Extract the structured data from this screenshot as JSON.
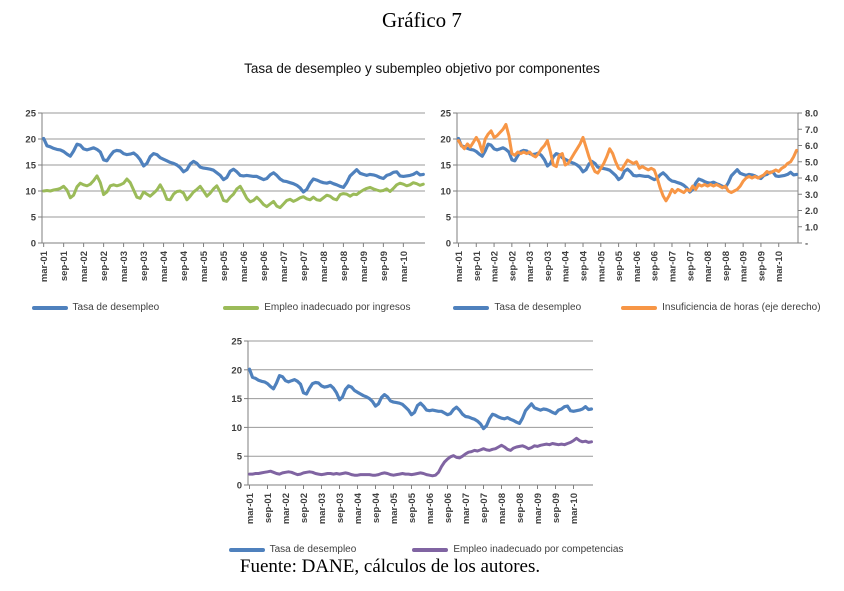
{
  "page": {
    "title": "Gráfico 7",
    "subtitle": "Tasa de desempleo y subempleo objetivo por componentes",
    "source": "Fuente: DANE, cálculos de los autores."
  },
  "colors": {
    "unemployment_blue": "#4F81BD",
    "income_green": "#9BBB59",
    "hours_orange": "#F79646",
    "competencies_purple": "#8064A2",
    "grid_gray": "#9a9a9a",
    "axis_gray": "#7f7f7f",
    "tick_text": "#3f3f3f"
  },
  "chart_data": [
    {
      "type": "line",
      "position": "top-left",
      "x_tick_labels": [
        "mar-01",
        "sep-01",
        "mar-02",
        "sep-02",
        "mar-03",
        "sep-03",
        "mar-04",
        "sep-04",
        "mar-05",
        "sep-05",
        "mar-06",
        "sep-06",
        "mar-07",
        "sep-07",
        "mar-08",
        "sep-08",
        "mar-09",
        "sep-09",
        "mar-10"
      ],
      "tick_interval": 6,
      "grid": true,
      "legend_position": "bottom",
      "left_axis": {
        "min": 0,
        "max": 25,
        "tick_values": [
          0,
          5,
          10,
          15,
          20,
          25
        ],
        "tick_labels": [
          "0",
          "5",
          "10",
          "15",
          "20",
          "25"
        ]
      },
      "right_axis": null,
      "series": [
        {
          "name": "Tasa de desempleo",
          "color": "#4F81BD",
          "axis": "left",
          "values": [
            20.1,
            18.7,
            18.5,
            18.2,
            18.0,
            17.9,
            17.6,
            17.1,
            16.7,
            17.7,
            19.0,
            18.8,
            18.1,
            17.9,
            18.1,
            18.3,
            18.0,
            17.5,
            16.0,
            15.8,
            16.8,
            17.6,
            17.8,
            17.7,
            17.2,
            17.0,
            17.1,
            17.3,
            16.8,
            16.0,
            14.8,
            15.3,
            16.6,
            17.2,
            17.0,
            16.4,
            16.1,
            15.8,
            15.5,
            15.3,
            15.0,
            14.5,
            13.7,
            14.1,
            15.2,
            15.7,
            15.3,
            14.6,
            14.4,
            14.3,
            14.2,
            14.0,
            13.5,
            13.0,
            12.2,
            12.6,
            13.8,
            14.2,
            13.7,
            13.0,
            12.9,
            13.0,
            12.9,
            12.8,
            12.8,
            12.5,
            12.2,
            12.4,
            13.1,
            13.5,
            13.0,
            12.3,
            11.9,
            11.8,
            11.6,
            11.4,
            11.1,
            10.6,
            9.8,
            10.3,
            11.5,
            12.3,
            12.1,
            11.8,
            11.6,
            11.5,
            11.7,
            11.4,
            11.2,
            10.9,
            10.7,
            11.6,
            12.9,
            13.5,
            14.1,
            13.4,
            13.2,
            13.0,
            13.2,
            13.1,
            12.9,
            12.6,
            12.4,
            13.0,
            13.2,
            13.6,
            13.7,
            12.9,
            12.8,
            12.9,
            13.0,
            13.2,
            13.6,
            13.1,
            13.2
          ]
        },
        {
          "name": "Empleo inadecuado por ingresos",
          "color": "#9BBB59",
          "axis": "left",
          "values": [
            10.0,
            10.1,
            10.0,
            10.2,
            10.3,
            10.5,
            10.9,
            10.2,
            8.7,
            9.2,
            10.8,
            11.5,
            11.2,
            11.0,
            11.3,
            12.0,
            12.9,
            11.6,
            9.3,
            9.8,
            11.0,
            11.2,
            11.0,
            11.2,
            11.5,
            12.3,
            11.6,
            10.2,
            8.8,
            8.6,
            9.8,
            9.4,
            9.0,
            9.6,
            10.2,
            11.2,
            10.0,
            8.4,
            8.3,
            9.4,
            9.9,
            10.0,
            9.6,
            8.3,
            9.0,
            9.8,
            10.3,
            10.9,
            10.0,
            9.0,
            9.6,
            10.4,
            11.0,
            9.8,
            8.2,
            8.0,
            8.8,
            9.4,
            10.4,
            10.9,
            9.8,
            8.6,
            7.9,
            8.2,
            8.8,
            8.2,
            7.4,
            7.0,
            7.5,
            8.0,
            7.1,
            6.8,
            7.5,
            8.2,
            8.4,
            8.0,
            8.3,
            8.7,
            8.9,
            8.5,
            8.3,
            8.8,
            8.3,
            8.2,
            8.7,
            9.2,
            9.0,
            8.5,
            8.3,
            9.3,
            9.5,
            9.4,
            9.0,
            9.4,
            9.3,
            9.8,
            10.2,
            10.5,
            10.7,
            10.4,
            10.2,
            10.0,
            10.1,
            10.4,
            9.9,
            10.5,
            11.2,
            11.5,
            11.3,
            11.0,
            11.2,
            11.6,
            11.4,
            11.1,
            11.3
          ]
        }
      ]
    },
    {
      "type": "line",
      "position": "top-right",
      "x_tick_labels": [
        "mar-01",
        "sep-01",
        "mar-02",
        "sep-02",
        "mar-03",
        "sep-03",
        "mar-04",
        "sep-04",
        "mar-05",
        "sep-05",
        "mar-06",
        "sep-06",
        "mar-07",
        "sep-07",
        "mar-08",
        "sep-08",
        "mar-09",
        "sep-09",
        "mar-10"
      ],
      "tick_interval": 6,
      "grid": true,
      "legend_position": "bottom",
      "left_axis": {
        "min": 0,
        "max": 25,
        "tick_values": [
          0,
          5,
          10,
          15,
          20,
          25
        ],
        "tick_labels": [
          "0",
          "5",
          "10",
          "15",
          "20",
          "25"
        ]
      },
      "right_axis": {
        "min": 0,
        "max": 8,
        "tick_values": [
          0,
          1,
          2,
          3,
          4,
          5,
          6,
          7,
          8
        ],
        "tick_labels": [
          "-",
          "1.0",
          "2.0",
          "3.0",
          "4.0",
          "5.0",
          "6.0",
          "7.0",
          "8.0"
        ]
      },
      "series": [
        {
          "name": "Tasa de desempleo",
          "color": "#4F81BD",
          "axis": "left",
          "values": [
            20.1,
            18.7,
            18.5,
            18.2,
            18.0,
            17.9,
            17.6,
            17.1,
            16.7,
            17.7,
            19.0,
            18.8,
            18.1,
            17.9,
            18.1,
            18.3,
            18.0,
            17.5,
            16.0,
            15.8,
            16.8,
            17.6,
            17.8,
            17.7,
            17.2,
            17.0,
            17.1,
            17.3,
            16.8,
            16.0,
            14.8,
            15.3,
            16.6,
            17.2,
            17.0,
            16.4,
            16.1,
            15.8,
            15.5,
            15.3,
            15.0,
            14.5,
            13.7,
            14.1,
            15.2,
            15.7,
            15.3,
            14.6,
            14.4,
            14.3,
            14.2,
            14.0,
            13.5,
            13.0,
            12.2,
            12.6,
            13.8,
            14.2,
            13.7,
            13.0,
            12.9,
            13.0,
            12.9,
            12.8,
            12.8,
            12.5,
            12.2,
            12.4,
            13.1,
            13.5,
            13.0,
            12.3,
            11.9,
            11.8,
            11.6,
            11.4,
            11.1,
            10.6,
            9.8,
            10.3,
            11.5,
            12.3,
            12.1,
            11.8,
            11.6,
            11.5,
            11.7,
            11.4,
            11.2,
            10.9,
            10.7,
            11.6,
            12.9,
            13.5,
            14.1,
            13.4,
            13.2,
            13.0,
            13.2,
            13.1,
            12.9,
            12.6,
            12.4,
            13.0,
            13.2,
            13.6,
            13.7,
            12.9,
            12.8,
            12.9,
            13.0,
            13.2,
            13.6,
            13.1,
            13.2
          ]
        },
        {
          "name": "Insuficiencia de horas (eje derecho)",
          "color": "#F79646",
          "axis": "right",
          "values": [
            6.3,
            6.0,
            5.8,
            6.1,
            5.9,
            6.2,
            6.5,
            6.2,
            5.6,
            6.4,
            6.7,
            6.9,
            6.5,
            6.6,
            6.8,
            7.0,
            7.3,
            6.6,
            5.5,
            5.4,
            5.6,
            5.5,
            5.6,
            5.5,
            5.6,
            5.4,
            5.3,
            5.5,
            5.8,
            6.0,
            6.3,
            5.6,
            4.8,
            4.7,
            5.4,
            5.5,
            4.8,
            4.9,
            5.2,
            5.5,
            5.8,
            6.1,
            6.5,
            5.9,
            5.3,
            4.8,
            4.4,
            4.3,
            4.6,
            4.9,
            5.3,
            5.8,
            5.5,
            5.0,
            4.6,
            4.5,
            4.8,
            5.1,
            5.0,
            4.9,
            5.0,
            4.6,
            4.7,
            4.6,
            4.5,
            4.6,
            4.5,
            4.0,
            3.4,
            2.9,
            2.6,
            2.9,
            3.3,
            3.1,
            3.3,
            3.2,
            3.1,
            3.3,
            3.2,
            3.5,
            3.3,
            3.6,
            3.5,
            3.6,
            3.5,
            3.6,
            3.5,
            3.6,
            3.5,
            3.4,
            3.5,
            3.2,
            3.1,
            3.2,
            3.3,
            3.5,
            3.8,
            4.0,
            4.1,
            4.0,
            4.1,
            4.0,
            4.1,
            4.2,
            4.4,
            4.3,
            4.4,
            4.5,
            4.4,
            4.6,
            4.7,
            4.9,
            5.0,
            5.3,
            5.7
          ]
        }
      ]
    },
    {
      "type": "line",
      "position": "bottom-center",
      "x_tick_labels": [
        "mar-01",
        "sep-01",
        "mar-02",
        "sep-02",
        "mar-03",
        "sep-03",
        "mar-04",
        "sep-04",
        "mar-05",
        "sep-05",
        "mar-06",
        "sep-06",
        "mar-07",
        "sep-07",
        "mar-08",
        "sep-08",
        "mar-09",
        "sep-09",
        "mar-10"
      ],
      "tick_interval": 6,
      "grid": true,
      "legend_position": "bottom",
      "left_axis": {
        "min": 0,
        "max": 25,
        "tick_values": [
          0,
          5,
          10,
          15,
          20,
          25
        ],
        "tick_labels": [
          "0",
          "5",
          "10",
          "15",
          "20",
          "25"
        ]
      },
      "right_axis": null,
      "series": [
        {
          "name": "Tasa de desempleo",
          "color": "#4F81BD",
          "axis": "left",
          "values": [
            20.1,
            18.7,
            18.5,
            18.2,
            18.0,
            17.9,
            17.6,
            17.1,
            16.7,
            17.7,
            19.0,
            18.8,
            18.1,
            17.9,
            18.1,
            18.3,
            18.0,
            17.5,
            16.0,
            15.8,
            16.8,
            17.6,
            17.8,
            17.7,
            17.2,
            17.0,
            17.1,
            17.3,
            16.8,
            16.0,
            14.8,
            15.3,
            16.6,
            17.2,
            17.0,
            16.4,
            16.1,
            15.8,
            15.5,
            15.3,
            15.0,
            14.5,
            13.7,
            14.1,
            15.2,
            15.7,
            15.3,
            14.6,
            14.4,
            14.3,
            14.2,
            14.0,
            13.5,
            13.0,
            12.2,
            12.6,
            13.8,
            14.2,
            13.7,
            13.0,
            12.9,
            13.0,
            12.9,
            12.8,
            12.8,
            12.5,
            12.2,
            12.4,
            13.1,
            13.5,
            13.0,
            12.3,
            11.9,
            11.8,
            11.6,
            11.4,
            11.1,
            10.6,
            9.8,
            10.3,
            11.5,
            12.3,
            12.1,
            11.8,
            11.6,
            11.5,
            11.7,
            11.4,
            11.2,
            10.9,
            10.7,
            11.6,
            12.9,
            13.5,
            14.1,
            13.4,
            13.2,
            13.0,
            13.2,
            13.1,
            12.9,
            12.6,
            12.4,
            13.0,
            13.2,
            13.6,
            13.7,
            12.9,
            12.8,
            12.9,
            13.0,
            13.2,
            13.6,
            13.1,
            13.2
          ]
        },
        {
          "name": "Empleo inadecuado por competencias",
          "color": "#8064A2",
          "axis": "left",
          "values": [
            1.9,
            1.9,
            2.0,
            2.0,
            2.1,
            2.2,
            2.3,
            2.4,
            2.2,
            2.0,
            1.9,
            2.1,
            2.2,
            2.3,
            2.2,
            2.0,
            1.8,
            1.9,
            2.1,
            2.2,
            2.3,
            2.2,
            2.0,
            1.9,
            1.8,
            1.9,
            2.0,
            2.0,
            1.9,
            2.0,
            1.9,
            2.0,
            2.1,
            2.0,
            1.8,
            1.7,
            1.7,
            1.8,
            1.8,
            1.8,
            1.8,
            1.7,
            1.7,
            1.8,
            2.0,
            2.1,
            2.0,
            1.8,
            1.7,
            1.8,
            1.9,
            2.0,
            1.9,
            1.9,
            1.8,
            1.9,
            2.0,
            2.1,
            2.0,
            1.8,
            1.7,
            1.6,
            1.7,
            2.2,
            3.2,
            4.0,
            4.5,
            4.9,
            5.1,
            4.8,
            4.7,
            5.0,
            5.4,
            5.7,
            5.8,
            6.0,
            5.9,
            6.1,
            6.3,
            6.1,
            6.0,
            6.2,
            6.3,
            6.6,
            6.9,
            6.6,
            6.2,
            6.0,
            6.4,
            6.6,
            6.7,
            6.8,
            6.6,
            6.3,
            6.5,
            6.8,
            6.7,
            6.9,
            7.0,
            7.1,
            7.0,
            7.2,
            7.1,
            7.0,
            7.1,
            7.0,
            7.2,
            7.4,
            7.7,
            8.1,
            7.7,
            7.5,
            7.6,
            7.4,
            7.5
          ]
        }
      ]
    }
  ]
}
